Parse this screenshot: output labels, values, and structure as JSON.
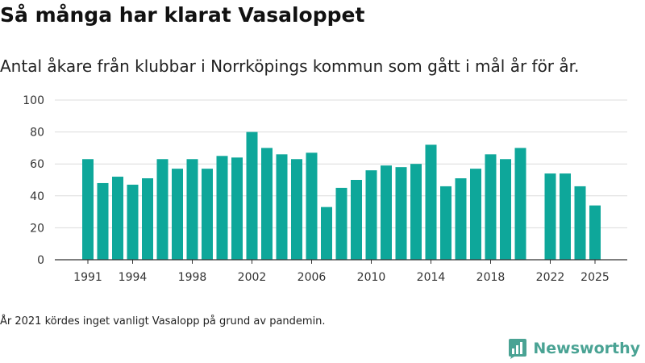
{
  "header": {
    "title": "Så många har klarat Vasaloppet",
    "subtitle": "Antal åkare från klubbar i Norrköpings kommun som gått i mål år för år."
  },
  "chart_data": {
    "type": "bar",
    "title": "Så många har klarat Vasaloppet",
    "subtitle": "Antal åkare från klubbar i Norrköpings kommun som gått i mål år för år.",
    "xlabel": "",
    "ylabel": "",
    "ylim": [
      0,
      100
    ],
    "yticks": [
      0,
      20,
      40,
      60,
      80,
      100
    ],
    "xticks": [
      1991,
      1994,
      1998,
      2002,
      2006,
      2010,
      2014,
      2018,
      2022,
      2025
    ],
    "grid": true,
    "bar_color": "#0ea79a",
    "categories": [
      1991,
      1992,
      1993,
      1994,
      1995,
      1996,
      1997,
      1998,
      1999,
      2000,
      2001,
      2002,
      2003,
      2004,
      2005,
      2006,
      2007,
      2008,
      2009,
      2010,
      2011,
      2012,
      2013,
      2014,
      2015,
      2016,
      2017,
      2018,
      2019,
      2020,
      2021,
      2022,
      2023,
      2024,
      2025
    ],
    "values": [
      63,
      48,
      52,
      47,
      51,
      63,
      57,
      63,
      57,
      65,
      64,
      80,
      70,
      66,
      63,
      67,
      33,
      45,
      50,
      56,
      59,
      58,
      60,
      72,
      46,
      51,
      57,
      66,
      63,
      70,
      null,
      54,
      54,
      46,
      34
    ]
  },
  "footnote": "År 2021 kördes inget vanligt Vasalopp på grund av pandemin.",
  "brand": {
    "name": "Newsworthy",
    "color": "#4aa394",
    "icon": "bar-chart-speech-bubble-icon"
  }
}
